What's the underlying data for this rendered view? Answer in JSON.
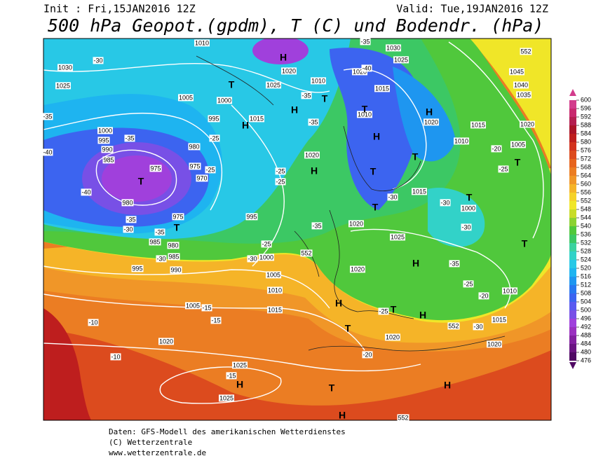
{
  "header": {
    "init": "Init : Fri,15JAN2016 12Z",
    "valid": "Valid: Tue,19JAN2016 12Z",
    "title": "500 hPa Geopot.(gpdm), T (C) und Bodendr. (hPa)"
  },
  "map": {
    "pressure_labels": [
      "1030",
      "1025",
      "1005",
      "1000",
      "995",
      "1000",
      "995",
      "990",
      "985",
      "975",
      "980",
      "975",
      "970",
      "980",
      "975",
      "985",
      "980",
      "985",
      "995",
      "990",
      "995",
      "1000",
      "1005",
      "1010",
      "1015",
      "1005",
      "1020",
      "1025",
      "1025",
      "1020",
      "1020",
      "1015",
      "1010",
      "1020",
      "1025",
      "1020",
      "1015",
      "1000",
      "1005",
      "1010",
      "1015",
      "1020",
      "1020",
      "1035",
      "1040",
      "1045",
      "1030",
      "1025",
      "1020",
      "1015",
      "1010",
      "1010",
      "1020",
      "1025",
      "1015",
      "1020",
      "1010"
    ],
    "temperature_labels": [
      "-30",
      "-35",
      "-35",
      "-40",
      "-40",
      "-35",
      "-30",
      "-35",
      "-30",
      "-25",
      "-25",
      "-25",
      "-25",
      "-35",
      "-35",
      "-30",
      "-25",
      "-15",
      "-15",
      "-10",
      "-10",
      "-15",
      "-20",
      "-25",
      "-30",
      "-35",
      "-30",
      "-30",
      "-25",
      "-20",
      "-25",
      "-20",
      "-30",
      "-35",
      "-40",
      "-35"
    ],
    "contour_labels": [
      "552",
      "552",
      "552",
      "552"
    ],
    "centers": [
      "H",
      "T",
      "H",
      "H",
      "T",
      "H",
      "T",
      "T",
      "T",
      "H",
      "T",
      "T",
      "H",
      "T",
      "T",
      "T",
      "H",
      "H",
      "T",
      "T",
      "H",
      "T",
      "H",
      "H",
      "H",
      "T"
    ]
  },
  "colorbar": {
    "ticks": [
      600,
      596,
      592,
      588,
      584,
      580,
      576,
      572,
      568,
      564,
      560,
      556,
      552,
      548,
      544,
      540,
      536,
      532,
      528,
      524,
      520,
      516,
      512,
      508,
      504,
      500,
      496,
      492,
      488,
      484,
      480,
      476
    ],
    "colors": [
      "#d23c8c",
      "#c8286e",
      "#b41e50",
      "#aa1428",
      "#be1e1e",
      "#d2321e",
      "#dc4b1e",
      "#e6641e",
      "#eb7d23",
      "#f09628",
      "#f5b428",
      "#f5d228",
      "#f0e628",
      "#c8dc28",
      "#8cd232",
      "#50c83c",
      "#3cc864",
      "#3cd2a0",
      "#32d2c8",
      "#28c8e6",
      "#1eb4f0",
      "#1e96f0",
      "#2878f0",
      "#3c64f0",
      "#5a5af0",
      "#7850e6",
      "#a040dc",
      "#9a30c0",
      "#8220a0",
      "#6a1482",
      "#500a64"
    ]
  },
  "footer": {
    "lines": [
      "Daten: GFS-Modell des amerikanischen Wetterdienstes",
      "(C) Wetterzentrale",
      "www.wetterzentrale.de"
    ]
  }
}
